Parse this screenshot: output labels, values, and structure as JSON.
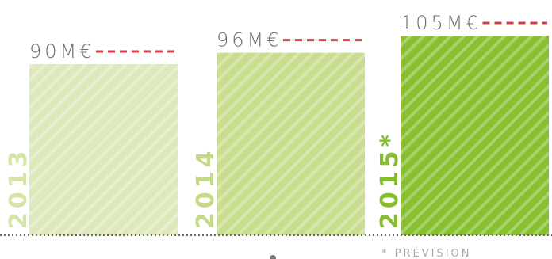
{
  "chart_data": {
    "type": "bar",
    "categories": [
      "2013",
      "2014",
      "2015*"
    ],
    "values": [
      90,
      96,
      105
    ],
    "value_labels": [
      "90M€",
      "96M€",
      "105M€"
    ],
    "unit": "M€",
    "ylim": [
      0,
      105
    ],
    "grid": false,
    "footnote": "* PRÉVISION",
    "colors": {
      "bars": [
        "#dde9bb",
        "#c8de8e",
        "#88c030"
      ],
      "year_labels": [
        "#d5e5a7",
        "#c4da86",
        "#86bd2d"
      ],
      "dash": "#d93a4a",
      "baseline": "#6a6a6a",
      "value_text": "#6d6d6d"
    }
  }
}
